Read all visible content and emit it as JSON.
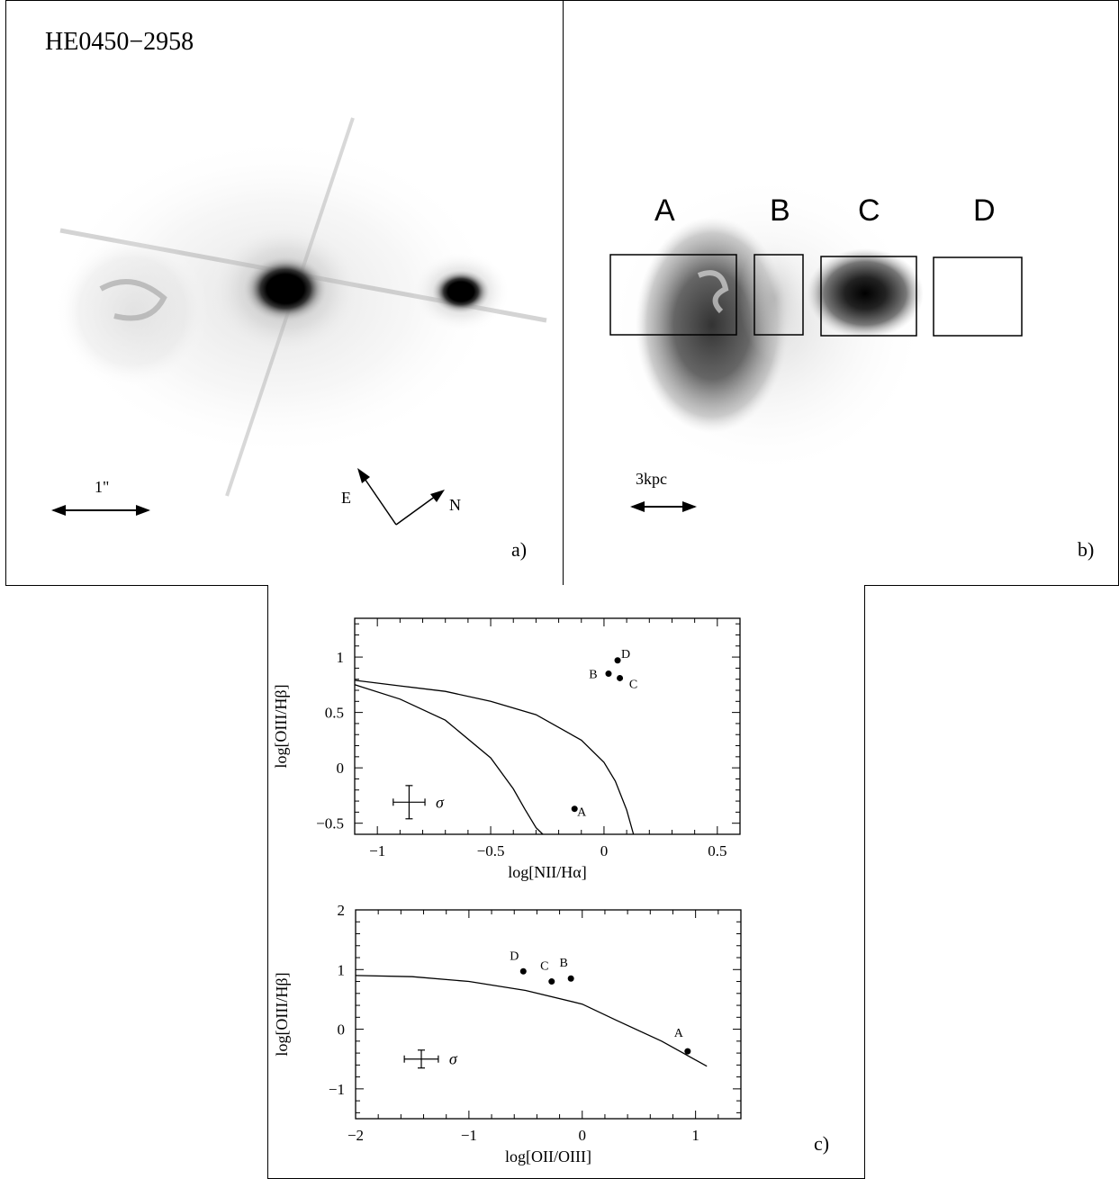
{
  "panel_a": {
    "title": "HE0450−2958",
    "scale_label": "1\"",
    "compass_e": "E",
    "compass_n": "N",
    "panel_label": "a)"
  },
  "panel_b": {
    "regions": [
      "A",
      "B",
      "C",
      "D"
    ],
    "scale_label": "3kpc",
    "panel_label": "b)"
  },
  "panel_c": {
    "panel_label": "c)",
    "sigma_label": "σ"
  },
  "chart_data": [
    {
      "type": "scatter",
      "xlabel": "log[NII/Hα]",
      "ylabel": "log[OIII/Hβ]",
      "xlim": [
        -1.1,
        0.6
      ],
      "ylim": [
        -0.6,
        1.35
      ],
      "x_ticks": [
        -1,
        -0.5,
        0,
        0.5
      ],
      "y_ticks": [
        -0.5,
        0,
        0.5,
        1
      ],
      "x_tick_labels": [
        "−1",
        "−0.5",
        "0",
        "0.5"
      ],
      "y_tick_labels": [
        "−0.5",
        "0",
        "0.5",
        "1"
      ],
      "points": [
        {
          "label": "A",
          "x": -0.13,
          "y": -0.37
        },
        {
          "label": "B",
          "x": 0.02,
          "y": 0.85
        },
        {
          "label": "C",
          "x": 0.07,
          "y": 0.81
        },
        {
          "label": "D",
          "x": 0.06,
          "y": 0.97
        }
      ],
      "curves": [
        {
          "x": [
            -1.1,
            -0.9,
            -0.7,
            -0.5,
            -0.4,
            -0.35,
            -0.3,
            -0.27
          ],
          "y": [
            0.75,
            0.62,
            0.43,
            0.09,
            -0.19,
            -0.37,
            -0.54,
            -0.6
          ]
        },
        {
          "x": [
            -1.1,
            -0.9,
            -0.7,
            -0.5,
            -0.3,
            -0.1,
            0.0,
            0.05,
            0.1,
            0.13
          ],
          "y": [
            0.79,
            0.74,
            0.69,
            0.6,
            0.48,
            0.25,
            0.05,
            -0.12,
            -0.38,
            -0.6
          ]
        }
      ],
      "error_bar": {
        "x": -0.86,
        "y": -0.31,
        "xerr": 0.07,
        "yerr": 0.15
      }
    },
    {
      "type": "scatter",
      "xlabel": "log[OII/OIII]",
      "ylabel": "log[OIII/Hβ]",
      "xlim": [
        -2.0,
        1.4
      ],
      "ylim": [
        -1.5,
        2.0
      ],
      "x_ticks": [
        -2,
        -1,
        0,
        1
      ],
      "y_ticks": [
        -1,
        0,
        1,
        2
      ],
      "x_tick_labels": [
        "−2",
        "−1",
        "0",
        "1"
      ],
      "y_tick_labels": [
        "−1",
        "0",
        "1",
        "2"
      ],
      "points": [
        {
          "label": "A",
          "x": 0.93,
          "y": -0.37
        },
        {
          "label": "B",
          "x": -0.1,
          "y": 0.85
        },
        {
          "label": "C",
          "x": -0.27,
          "y": 0.8
        },
        {
          "label": "D",
          "x": -0.52,
          "y": 0.97
        }
      ],
      "curves": [
        {
          "x": [
            -2.0,
            -1.5,
            -1.0,
            -0.5,
            0.0,
            0.3,
            0.7,
            1.1
          ],
          "y": [
            0.9,
            0.88,
            0.8,
            0.65,
            0.42,
            0.15,
            -0.2,
            -0.62
          ]
        }
      ],
      "error_bar": {
        "x": -1.42,
        "y": -0.5,
        "xerr": 0.15,
        "yerr": 0.15
      }
    }
  ]
}
